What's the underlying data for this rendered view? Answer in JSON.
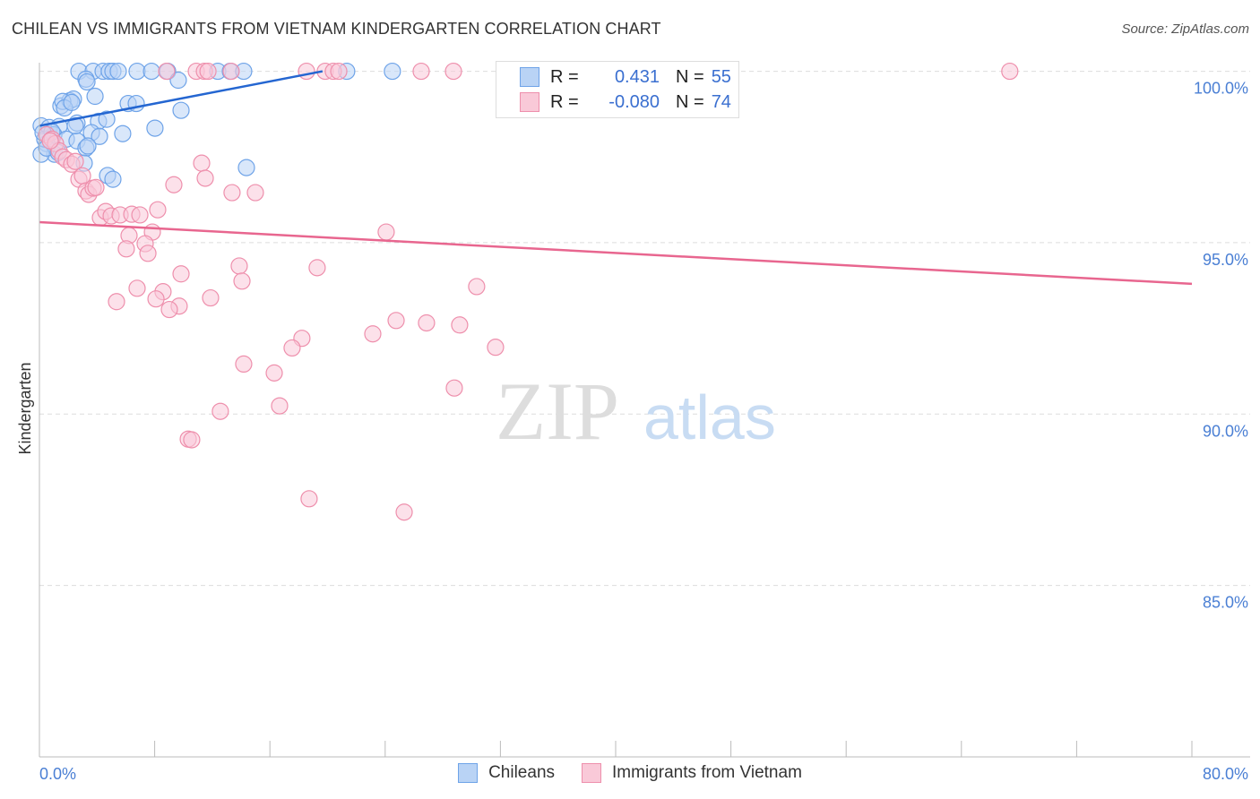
{
  "chart_data": {
    "type": "scatter",
    "title": "CHILEAN VS IMMIGRANTS FROM VIETNAM KINDERGARTEN CORRELATION CHART",
    "source": "Source: ZipAtlas.com",
    "xlabel": "",
    "ylabel": "Kindergarten",
    "xlim": [
      0,
      80
    ],
    "ylim": [
      80,
      100.25
    ],
    "x_tick_labels": [
      "0.0%",
      "80.0%"
    ],
    "x_ticks": [
      0,
      8,
      16,
      24,
      32,
      40,
      48,
      56,
      64,
      72,
      80
    ],
    "y_ticks": [
      100,
      95,
      90,
      85
    ],
    "y_tick_labels": [
      "100.0%",
      "95.0%",
      "90.0%",
      "85.0%"
    ],
    "grid": true,
    "watermark": "ZIPatlas",
    "legend": {
      "placement": "top-center",
      "rows": [
        {
          "r_label": "R =",
          "r": "0.431",
          "n_label": "N =",
          "n": "55"
        },
        {
          "r_label": "R =",
          "r": "-0.080",
          "n_label": "N =",
          "n": "74"
        }
      ]
    },
    "series": [
      {
        "name": "Chileans",
        "color": "#6ea3e8",
        "fill": "#b9d3f5",
        "line_color": "#2466d1",
        "trend": {
          "x": [
            0,
            19.65
          ],
          "y": [
            98.41,
            100
          ]
        },
        "points": [
          [
            2.74,
            100
          ],
          [
            3.73,
            100
          ],
          [
            4.42,
            100
          ],
          [
            4.85,
            100
          ],
          [
            5.1,
            100
          ],
          [
            5.47,
            100
          ],
          [
            6.78,
            100
          ],
          [
            7.78,
            100
          ],
          [
            8.9,
            100
          ],
          [
            12.38,
            100
          ],
          [
            13.25,
            100
          ],
          [
            14.18,
            100
          ],
          [
            21.33,
            100
          ],
          [
            24.5,
            100
          ],
          [
            3.23,
            99.77
          ],
          [
            3.3,
            99.69
          ],
          [
            9.64,
            99.74
          ],
          [
            3.86,
            99.27
          ],
          [
            1.49,
            98.99
          ],
          [
            2.11,
            99.14
          ],
          [
            2.36,
            99.19
          ],
          [
            1.62,
            99.12
          ],
          [
            6.16,
            99.06
          ],
          [
            6.72,
            99.06
          ],
          [
            9.83,
            98.86
          ],
          [
            8.02,
            98.34
          ],
          [
            0.12,
            98.41
          ],
          [
            0.68,
            98.36
          ],
          [
            1.37,
            98.39
          ],
          [
            2.61,
            98.49
          ],
          [
            4.1,
            98.54
          ],
          [
            4.67,
            98.6
          ],
          [
            1.0,
            98.15
          ],
          [
            1.87,
            98.02
          ],
          [
            2.61,
            97.97
          ],
          [
            3.61,
            98.21
          ],
          [
            4.17,
            98.1
          ],
          [
            5.78,
            98.18
          ],
          [
            0.5,
            97.89
          ],
          [
            3.23,
            97.76
          ],
          [
            3.36,
            97.82
          ],
          [
            1.06,
            97.58
          ],
          [
            3.11,
            97.32
          ],
          [
            4.73,
            96.96
          ],
          [
            5.1,
            96.85
          ],
          [
            14.37,
            97.19
          ],
          [
            0.12,
            97.58
          ],
          [
            0.37,
            98.02
          ],
          [
            0.87,
            98.23
          ],
          [
            2.49,
            98.41
          ],
          [
            0.5,
            97.76
          ],
          [
            0.25,
            98.21
          ],
          [
            1.74,
            98.93
          ],
          [
            2.24,
            99.09
          ],
          [
            1.31,
            97.63
          ]
        ]
      },
      {
        "name": "Immigrants from Vietnam",
        "color": "#ee8fac",
        "fill": "#f9c9d8",
        "line_color": "#e8668f",
        "trend": {
          "x": [
            0,
            80
          ],
          "y": [
            95.6,
            93.8
          ]
        },
        "points": [
          [
            8.83,
            100
          ],
          [
            10.89,
            100
          ],
          [
            11.45,
            100
          ],
          [
            11.7,
            100
          ],
          [
            13.31,
            100
          ],
          [
            18.54,
            100
          ],
          [
            19.84,
            100
          ],
          [
            20.4,
            100
          ],
          [
            20.78,
            100
          ],
          [
            26.5,
            100
          ],
          [
            28.74,
            100
          ],
          [
            43.29,
            100
          ],
          [
            67.36,
            100
          ],
          [
            0.5,
            98.15
          ],
          [
            0.87,
            98.02
          ],
          [
            1.12,
            97.89
          ],
          [
            1.37,
            97.68
          ],
          [
            1.62,
            97.5
          ],
          [
            1.87,
            97.42
          ],
          [
            2.24,
            97.29
          ],
          [
            2.74,
            96.85
          ],
          [
            2.99,
            96.95
          ],
          [
            3.23,
            96.51
          ],
          [
            3.42,
            96.41
          ],
          [
            3.73,
            96.59
          ],
          [
            3.92,
            96.61
          ],
          [
            4.23,
            95.73
          ],
          [
            4.6,
            95.91
          ],
          [
            4.98,
            95.78
          ],
          [
            5.6,
            95.81
          ],
          [
            6.41,
            95.83
          ],
          [
            6.97,
            95.81
          ],
          [
            8.21,
            95.96
          ],
          [
            6.22,
            95.21
          ],
          [
            7.84,
            95.31
          ],
          [
            7.34,
            94.97
          ],
          [
            6.03,
            94.82
          ],
          [
            7.53,
            94.69
          ],
          [
            11.26,
            97.32
          ],
          [
            11.51,
            96.88
          ],
          [
            9.33,
            96.69
          ],
          [
            13.37,
            96.46
          ],
          [
            14.99,
            96.46
          ],
          [
            24.07,
            95.31
          ],
          [
            13.87,
            94.32
          ],
          [
            19.28,
            94.27
          ],
          [
            14.06,
            93.88
          ],
          [
            9.83,
            94.09
          ],
          [
            30.35,
            93.72
          ],
          [
            6.78,
            93.67
          ],
          [
            8.58,
            93.57
          ],
          [
            5.35,
            93.28
          ],
          [
            8.09,
            93.36
          ],
          [
            11.88,
            93.39
          ],
          [
            9.7,
            93.15
          ],
          [
            9.02,
            93.05
          ],
          [
            24.76,
            92.73
          ],
          [
            26.87,
            92.66
          ],
          [
            23.14,
            92.34
          ],
          [
            29.17,
            92.6
          ],
          [
            18.22,
            92.21
          ],
          [
            17.54,
            91.93
          ],
          [
            31.66,
            91.95
          ],
          [
            14.18,
            91.46
          ],
          [
            16.3,
            91.2
          ],
          [
            28.8,
            90.76
          ],
          [
            16.67,
            90.24
          ],
          [
            12.56,
            90.08
          ],
          [
            10.33,
            89.27
          ],
          [
            10.57,
            89.25
          ],
          [
            18.72,
            87.53
          ],
          [
            25.32,
            87.14
          ],
          [
            0.75,
            97.97
          ],
          [
            2.49,
            97.37
          ]
        ]
      }
    ]
  }
}
